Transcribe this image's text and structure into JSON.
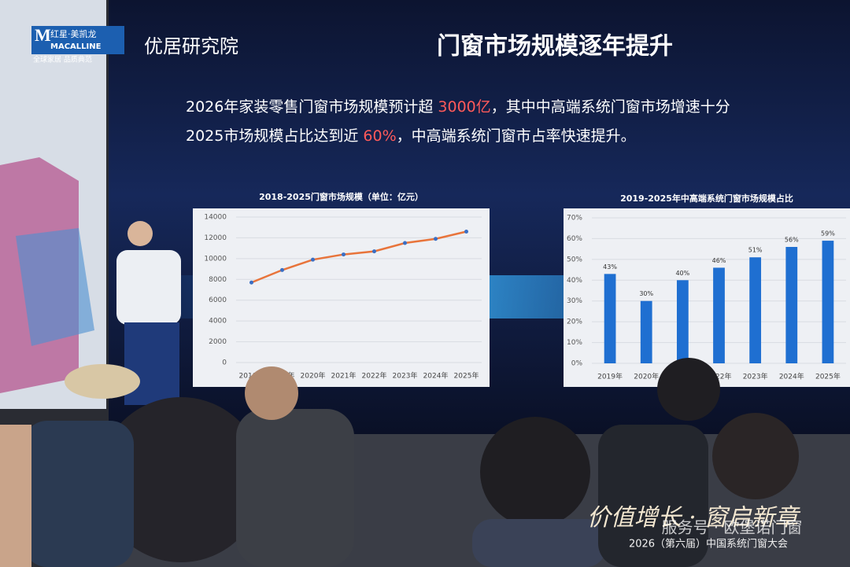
{
  "logo": {
    "brand": "红星·美凯龙",
    "brand_en": "MACALLINE",
    "slogan": "全球家居 品质典范"
  },
  "institute": "优居研究院",
  "slide_title": "门窗市场规模逐年提升",
  "paragraph": [
    [
      {
        "text": "2026年家装零售门窗市场规模预计超 ",
        "highlight": false
      },
      {
        "text": "3000亿",
        "highlight": true
      },
      {
        "text": "，其中中高端系统门窗市场增速十分",
        "highlight": false
      }
    ],
    [
      {
        "text": "2025市场规模占比达到近 ",
        "highlight": false
      },
      {
        "text": "60%",
        "highlight": true
      },
      {
        "text": "，中高端系统门窗市占率快速提升。",
        "highlight": false
      }
    ]
  ],
  "chart_data": [
    {
      "type": "line",
      "title": "2018-2025门窗市场规模（单位：亿元）",
      "categories": [
        "2018年",
        "2019年",
        "2020年",
        "2021年",
        "2022年",
        "2023年",
        "2024年",
        "2025年"
      ],
      "values": [
        7700,
        8900,
        9900,
        10400,
        10700,
        11500,
        11900,
        12600
      ],
      "color": "#e8743b",
      "marker_color": "#3a6fc4",
      "ylim": [
        0,
        14000
      ],
      "yticks": [
        0,
        2000,
        4000,
        6000,
        8000,
        10000,
        12000,
        14000
      ],
      "grid": true
    },
    {
      "type": "bar",
      "title": "2019-2025年中高端系统门窗市场规模占比",
      "categories": [
        "2019年",
        "2020年",
        "2021年",
        "2022年",
        "2023年",
        "2024年",
        "2025年"
      ],
      "values": [
        43,
        30,
        40,
        46,
        51,
        56,
        59
      ],
      "value_labels": [
        "43%",
        "30%",
        "40%",
        "46%",
        "51%",
        "56%",
        "59%"
      ],
      "color": "#1f6fd1",
      "ylim": [
        0,
        70
      ],
      "yticks": [
        {
          "value": 0,
          "label": "0%"
        },
        {
          "value": 10,
          "label": "10%"
        },
        {
          "value": 20,
          "label": "20%"
        },
        {
          "value": 30,
          "label": "30%"
        },
        {
          "value": 40,
          "label": "40%"
        },
        {
          "value": 50,
          "label": "50%"
        },
        {
          "value": 60,
          "label": "60%"
        },
        {
          "value": 70,
          "label": "70%"
        }
      ],
      "grid": true
    }
  ],
  "banner": {
    "slogan": "价值增长 · 窗启新章",
    "event": "2026（第六届）中国系统门窗大会",
    "watermark": "服务号 · 欧堡诺门窗"
  }
}
